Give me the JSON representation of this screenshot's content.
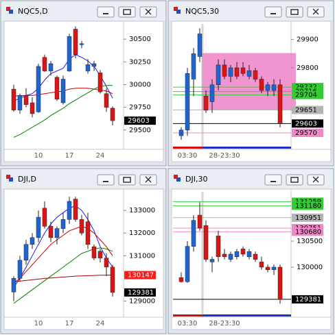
{
  "chart_data": [
    {
      "type": "candlestick",
      "title": "NQC5,D",
      "categories": [
        null,
        null,
        null,
        null,
        "10",
        null,
        null,
        null,
        null,
        "17",
        null,
        null,
        null,
        null,
        "24",
        null,
        null
      ],
      "open": [
        29950,
        29720,
        29880,
        29800,
        29700,
        30300,
        30150,
        30080,
        29800,
        30150,
        30610,
        30440,
        30150,
        30200,
        30130,
        29900,
        29740
      ],
      "high": [
        30000,
        29900,
        29960,
        29860,
        30230,
        30330,
        30260,
        30100,
        30100,
        30560,
        30640,
        30480,
        30280,
        30260,
        30160,
        29960,
        29760
      ],
      "low": [
        29700,
        29680,
        29750,
        29640,
        29690,
        30140,
        30100,
        29820,
        29780,
        30140,
        30290,
        30400,
        30120,
        30150,
        29900,
        29700,
        29550
      ],
      "close": [
        29720,
        29880,
        29780,
        29680,
        30200,
        30150,
        30230,
        29840,
        30060,
        30530,
        30330,
        30450,
        30220,
        30230,
        29920,
        29750,
        29603
      ],
      "up_color": "#1e64d2",
      "down_color": "#dc1414",
      "series": [
        {
          "color": "#1a1aff",
          "values": [
            29820,
            29850,
            29880,
            29900,
            29960,
            30050,
            30120,
            30150,
            30180,
            30280,
            30330,
            30300,
            30260,
            30200,
            30100,
            29980,
            29850
          ]
        },
        {
          "color": "#cc0000",
          "values": [
            29870,
            29880,
            29880,
            29880,
            29890,
            29900,
            29910,
            29920,
            29930,
            29950,
            29960,
            29960,
            29960,
            29950,
            29940,
            29930,
            29900
          ]
        },
        {
          "color": "#008000",
          "values": [
            29420,
            29450,
            29490,
            29530,
            29570,
            29610,
            29660,
            29700,
            29740,
            29790,
            29830,
            29870,
            29910,
            29950,
            29980,
            29990,
            29990
          ]
        }
      ],
      "ylim": [
        29310,
        30667
      ],
      "yticks": [
        29500,
        29750,
        30000,
        30250,
        30500
      ],
      "price_tags": [
        {
          "value": 29603,
          "color": "#000000"
        }
      ],
      "level_lines": false,
      "session_bar": false
    },
    {
      "type": "candlestick",
      "title": "NQC5,30",
      "categories": [
        null,
        "03:30",
        null,
        null,
        null,
        null,
        null,
        "28-23:30",
        null,
        null,
        null,
        null,
        null,
        null,
        null,
        null,
        null
      ],
      "open": [
        29560,
        29580,
        29760,
        29840,
        29700,
        29680,
        29740,
        29810,
        29770,
        29800,
        29800,
        29770,
        29790,
        29760,
        29720,
        29720,
        29740
      ],
      "high": [
        29590,
        29800,
        29870,
        29940,
        29720,
        29760,
        29830,
        29830,
        29810,
        29820,
        29820,
        29810,
        29800,
        29770,
        29750,
        29760,
        29760
      ],
      "low": [
        29545,
        29560,
        29700,
        29820,
        29640,
        29640,
        29720,
        29760,
        29750,
        29760,
        29770,
        29760,
        29750,
        29710,
        29700,
        29700,
        29590
      ],
      "close": [
        29580,
        29780,
        29850,
        29920,
        29650,
        29740,
        29810,
        29770,
        29800,
        29770,
        29780,
        29790,
        29760,
        29720,
        29740,
        29740,
        29603
      ],
      "up_color": "#1e64d2",
      "down_color": "#dc1414",
      "zone": [
        29650,
        29852
      ],
      "zone_color": "#ee82c8",
      "ylim": [
        29519,
        29955
      ],
      "yticks": [
        29800,
        29900
      ],
      "price_tags": [
        {
          "value": 29732,
          "color": "#33cc33"
        },
        {
          "value": 29716,
          "color": "#33cc33"
        },
        {
          "value": 29704,
          "color": "#33cc33"
        },
        {
          "value": 29651,
          "color": "#b4b4b4"
        },
        {
          "value": 29603,
          "color": "#000000"
        },
        {
          "value": 29570,
          "color": "#f088c8"
        }
      ],
      "level_lines": true,
      "session_bar": true
    },
    {
      "type": "candlestick",
      "title": "DJI,D",
      "categories": [
        null,
        null,
        null,
        null,
        "10",
        null,
        null,
        null,
        null,
        "17",
        null,
        null,
        null,
        null,
        "24",
        null,
        null
      ],
      "open": [
        129400,
        130000,
        130800,
        131500,
        131800,
        133100,
        132300,
        131800,
        132200,
        132600,
        133500,
        132600,
        132500,
        131400,
        131200,
        130900,
        130500
      ],
      "high": [
        130100,
        131000,
        131700,
        132000,
        133000,
        133400,
        132500,
        132300,
        132900,
        133600,
        133600,
        132800,
        132900,
        131500,
        131300,
        131100,
        130600
      ],
      "low": [
        129000,
        129900,
        130600,
        131300,
        131600,
        132200,
        131600,
        131500,
        132000,
        132400,
        132500,
        131900,
        131300,
        130800,
        130700,
        130100,
        129200
      ],
      "close": [
        130000,
        130800,
        131500,
        131800,
        132700,
        132300,
        131800,
        132200,
        132600,
        133400,
        132600,
        132000,
        131500,
        130900,
        130900,
        130500,
        129381
      ],
      "up_color": "#1e64d2",
      "down_color": "#dc1414",
      "series": [
        {
          "color": "#1a1aff",
          "values": [
            129600,
            130000,
            130500,
            131000,
            131500,
            132000,
            132400,
            132700,
            132900,
            133100,
            133200,
            133000,
            132600,
            132100,
            131400,
            130900,
            130500
          ]
        },
        {
          "color": "#cc0000",
          "values": [
            129800,
            130000,
            130300,
            130600,
            130900,
            131200,
            131500,
            131700,
            131900,
            132100,
            132200,
            132300,
            132200,
            132000,
            131700,
            131400,
            131000
          ]
        },
        {
          "color": "#008000",
          "values": [
            128900,
            129100,
            129300,
            129500,
            129700,
            129900,
            130100,
            130300,
            130500,
            130700,
            130900,
            131100,
            131200,
            131300,
            131350,
            131300,
            131200
          ]
        },
        {
          "color": "#a00000",
          "values": [
            129850,
            129880,
            129910,
            129940,
            129970,
            130000,
            130020,
            130040,
            130060,
            130080,
            130100,
            130110,
            130120,
            130130,
            130140,
            130145,
            130147
          ]
        }
      ],
      "ylim": [
        128380,
        133820
      ],
      "yticks": [
        129000,
        131000,
        132000,
        133000
      ],
      "price_tags": [
        {
          "value": 130147,
          "color": "#ff1a1a"
        },
        {
          "value": 129381,
          "color": "#000000"
        }
      ],
      "level_lines": false,
      "session_bar": false
    },
    {
      "type": "candlestick",
      "title": "DJI,30",
      "categories": [
        null,
        "03:30",
        null,
        null,
        null,
        null,
        null,
        "28-23:30",
        null,
        null,
        null,
        null,
        null,
        null,
        null,
        null,
        null
      ],
      "open": [
        129800,
        129720,
        130400,
        131000,
        130800,
        130100,
        130600,
        130250,
        130150,
        130200,
        130350,
        130200,
        130250,
        130100,
        130000,
        129950,
        130000
      ],
      "high": [
        129900,
        130500,
        131000,
        131250,
        130900,
        130200,
        130700,
        130350,
        130300,
        130350,
        130400,
        130350,
        130300,
        130200,
        130050,
        130050,
        130050
      ],
      "low": [
        129700,
        129700,
        130300,
        130700,
        130100,
        129900,
        130100,
        130150,
        130100,
        130150,
        130200,
        130150,
        130100,
        129950,
        129900,
        129850,
        129300
      ],
      "close": [
        129720,
        130400,
        130900,
        130750,
        130150,
        130150,
        130200,
        130200,
        130250,
        130300,
        130250,
        130300,
        130150,
        130000,
        129950,
        130000,
        129381
      ],
      "up_color": "#1e64d2",
      "down_color": "#dc1414",
      "ylim": [
        129077,
        131449
      ],
      "yticks": [
        130000,
        130500
      ],
      "price_tags": [
        {
          "value": 131259,
          "color": "#33cc33"
        },
        {
          "value": 131180,
          "color": "#33cc33"
        },
        {
          "value": 130951,
          "color": "#b4b4b4"
        },
        {
          "value": 130751,
          "color": "#f088c8"
        },
        {
          "value": 130680,
          "color": "#f088c8"
        },
        {
          "value": 129381,
          "color": "#000000"
        }
      ],
      "level_lines": true,
      "session_bar": true
    }
  ]
}
